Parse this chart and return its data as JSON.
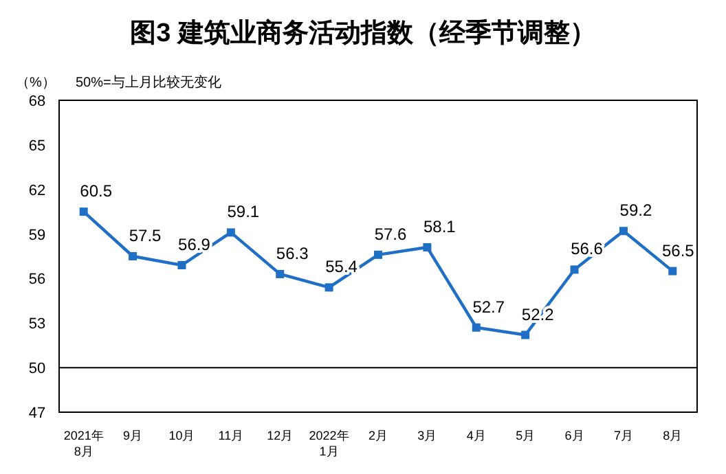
{
  "chart_data": {
    "type": "line",
    "title": "图3  建筑业商务活动指数（经季节调整）",
    "ylabel": "（%）",
    "annotations": [
      "50%=与上月比较无变化"
    ],
    "categories": [
      "2021年\n8月",
      "9月",
      "10月",
      "11月",
      "12月",
      "2022年\n1月",
      "2月",
      "3月",
      "4月",
      "5月",
      "6月",
      "7月",
      "8月"
    ],
    "series": [
      {
        "color": "#1f6fc6",
        "values": [
          60.5,
          57.5,
          56.9,
          59.1,
          56.3,
          55.4,
          57.6,
          58.1,
          52.7,
          52.2,
          56.6,
          59.2,
          56.5
        ]
      }
    ],
    "ylim": [
      47,
      68
    ],
    "yticks": [
      47,
      50,
      53,
      56,
      59,
      62,
      65,
      68
    ],
    "grid": false,
    "marker": "square",
    "line_style": "solid",
    "data_labels": true,
    "ref_lines": [
      {
        "axis": "y",
        "value": 50,
        "color": "#000000",
        "line_style": "solid"
      }
    ]
  }
}
